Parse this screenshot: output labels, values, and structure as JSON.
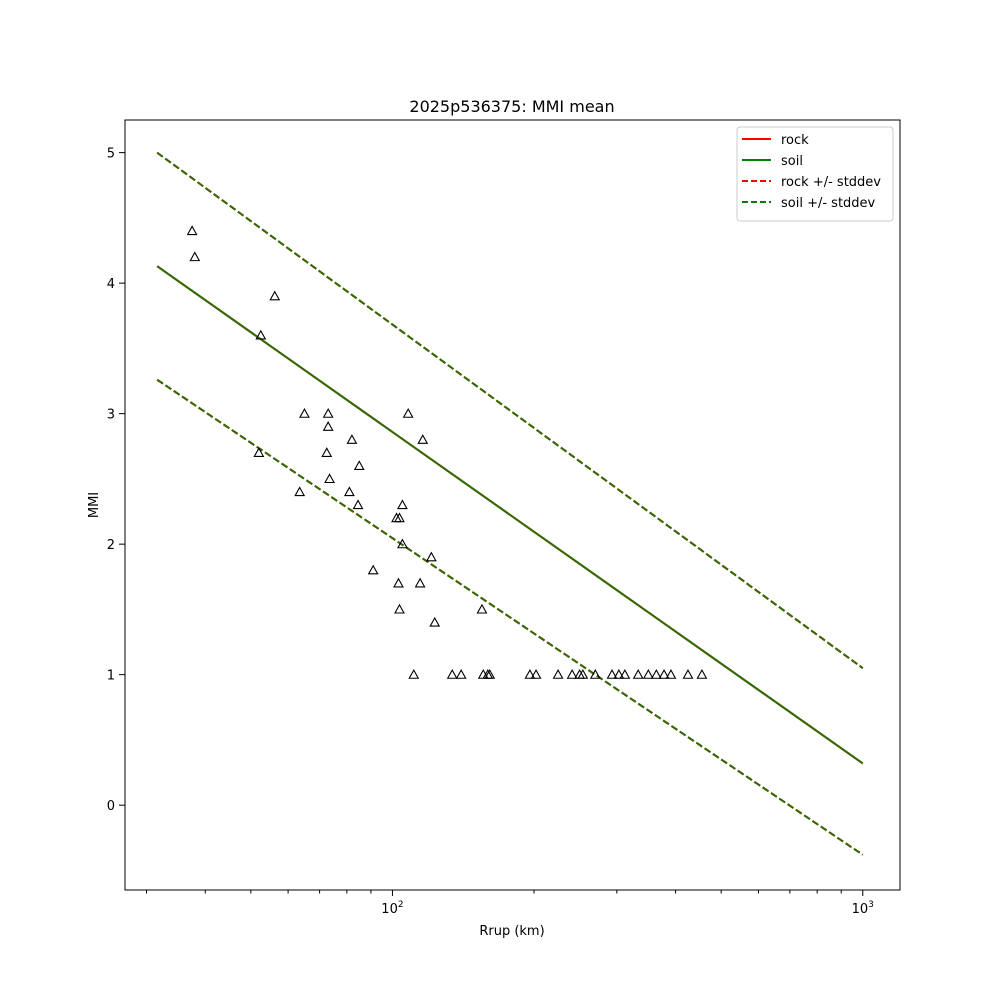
{
  "chart_data": {
    "type": "scatter",
    "title": "2025p536375: MMI mean",
    "xlabel": "Rrup (km)",
    "ylabel": "MMI",
    "xscale": "log",
    "xlim": [
      27,
      1200
    ],
    "ylim": [
      -0.65,
      5.25
    ],
    "x_tick_labels": [
      {
        "value": 100,
        "base": "10",
        "exp": "2"
      },
      {
        "value": 1000,
        "base": "10",
        "exp": "3"
      }
    ],
    "y_ticks": [
      0,
      1,
      2,
      3,
      4,
      5
    ],
    "y_tick_labels": [
      "0",
      "1",
      "2",
      "3",
      "4",
      "5"
    ],
    "grid": false,
    "legend_position": "top-right",
    "legend": [
      {
        "label": "rock",
        "color": "#ff0000",
        "dash": "solid"
      },
      {
        "label": "soil",
        "color": "#008000",
        "dash": "solid"
      },
      {
        "label": "rock +/- stddev",
        "color": "#ff0000",
        "dash": "dashed"
      },
      {
        "label": "soil +/- stddev",
        "color": "#008000",
        "dash": "dashed"
      }
    ],
    "lines": [
      {
        "name": "rock",
        "color": "#ff0000",
        "dash": "solid",
        "x": [
          31.6,
          1000
        ],
        "y": [
          4.13,
          0.32
        ]
      },
      {
        "name": "rock +/- stddev",
        "color": "#ff0000",
        "dash": "dashed",
        "x": [
          31.6,
          1000
        ],
        "y": [
          5.0,
          1.05
        ]
      },
      {
        "name": "rock +/- stddev",
        "color": "#ff0000",
        "dash": "dashed",
        "x": [
          31.6,
          1000
        ],
        "y": [
          3.26,
          -0.38
        ]
      },
      {
        "name": "soil",
        "color": "#2a6e00",
        "dash": "solid",
        "x": [
          31.6,
          1000
        ],
        "y": [
          4.13,
          0.32
        ]
      },
      {
        "name": "soil +/- stddev",
        "color": "#2a6e00",
        "dash": "dashed",
        "x": [
          31.6,
          1000
        ],
        "y": [
          5.0,
          1.05
        ]
      },
      {
        "name": "soil +/- stddev",
        "color": "#2a6e00",
        "dash": "dashed",
        "x": [
          31.6,
          1000
        ],
        "y": [
          3.26,
          -0.38
        ]
      }
    ],
    "points": [
      {
        "x": 37.5,
        "y": 4.4
      },
      {
        "x": 38.0,
        "y": 4.2
      },
      {
        "x": 56.2,
        "y": 3.9
      },
      {
        "x": 52.5,
        "y": 3.6
      },
      {
        "x": 52.0,
        "y": 2.7
      },
      {
        "x": 65.0,
        "y": 3.0
      },
      {
        "x": 73.0,
        "y": 3.0
      },
      {
        "x": 73.0,
        "y": 2.9
      },
      {
        "x": 82.0,
        "y": 2.8
      },
      {
        "x": 72.5,
        "y": 2.7
      },
      {
        "x": 85.0,
        "y": 2.6
      },
      {
        "x": 73.5,
        "y": 2.5
      },
      {
        "x": 63.5,
        "y": 2.4
      },
      {
        "x": 81.0,
        "y": 2.4
      },
      {
        "x": 84.5,
        "y": 2.3
      },
      {
        "x": 108.0,
        "y": 3.0
      },
      {
        "x": 116.0,
        "y": 2.8
      },
      {
        "x": 105.0,
        "y": 2.3
      },
      {
        "x": 102.0,
        "y": 2.2
      },
      {
        "x": 103.5,
        "y": 2.2
      },
      {
        "x": 105.0,
        "y": 2.0
      },
      {
        "x": 121.0,
        "y": 1.9
      },
      {
        "x": 91.0,
        "y": 1.8
      },
      {
        "x": 103.0,
        "y": 1.7
      },
      {
        "x": 114.5,
        "y": 1.7
      },
      {
        "x": 103.5,
        "y": 1.5
      },
      {
        "x": 155.0,
        "y": 1.5
      },
      {
        "x": 123.0,
        "y": 1.4
      },
      {
        "x": 111.0,
        "y": 1.0
      },
      {
        "x": 134.0,
        "y": 1.0
      },
      {
        "x": 140.0,
        "y": 1.0
      },
      {
        "x": 156.0,
        "y": 1.0
      },
      {
        "x": 159.5,
        "y": 1.0
      },
      {
        "x": 161.0,
        "y": 1.0
      },
      {
        "x": 196.0,
        "y": 1.0
      },
      {
        "x": 202.0,
        "y": 1.0
      },
      {
        "x": 225.0,
        "y": 1.0
      },
      {
        "x": 241.0,
        "y": 1.0
      },
      {
        "x": 250.0,
        "y": 1.0
      },
      {
        "x": 254.0,
        "y": 1.0
      },
      {
        "x": 270.0,
        "y": 1.0
      },
      {
        "x": 293.0,
        "y": 1.0
      },
      {
        "x": 303.0,
        "y": 1.0
      },
      {
        "x": 312.0,
        "y": 1.0
      },
      {
        "x": 333.0,
        "y": 1.0
      },
      {
        "x": 350.0,
        "y": 1.0
      },
      {
        "x": 364.0,
        "y": 1.0
      },
      {
        "x": 378.0,
        "y": 1.0
      },
      {
        "x": 391.0,
        "y": 1.0
      },
      {
        "x": 425.0,
        "y": 1.0
      },
      {
        "x": 455.0,
        "y": 1.0
      }
    ]
  }
}
